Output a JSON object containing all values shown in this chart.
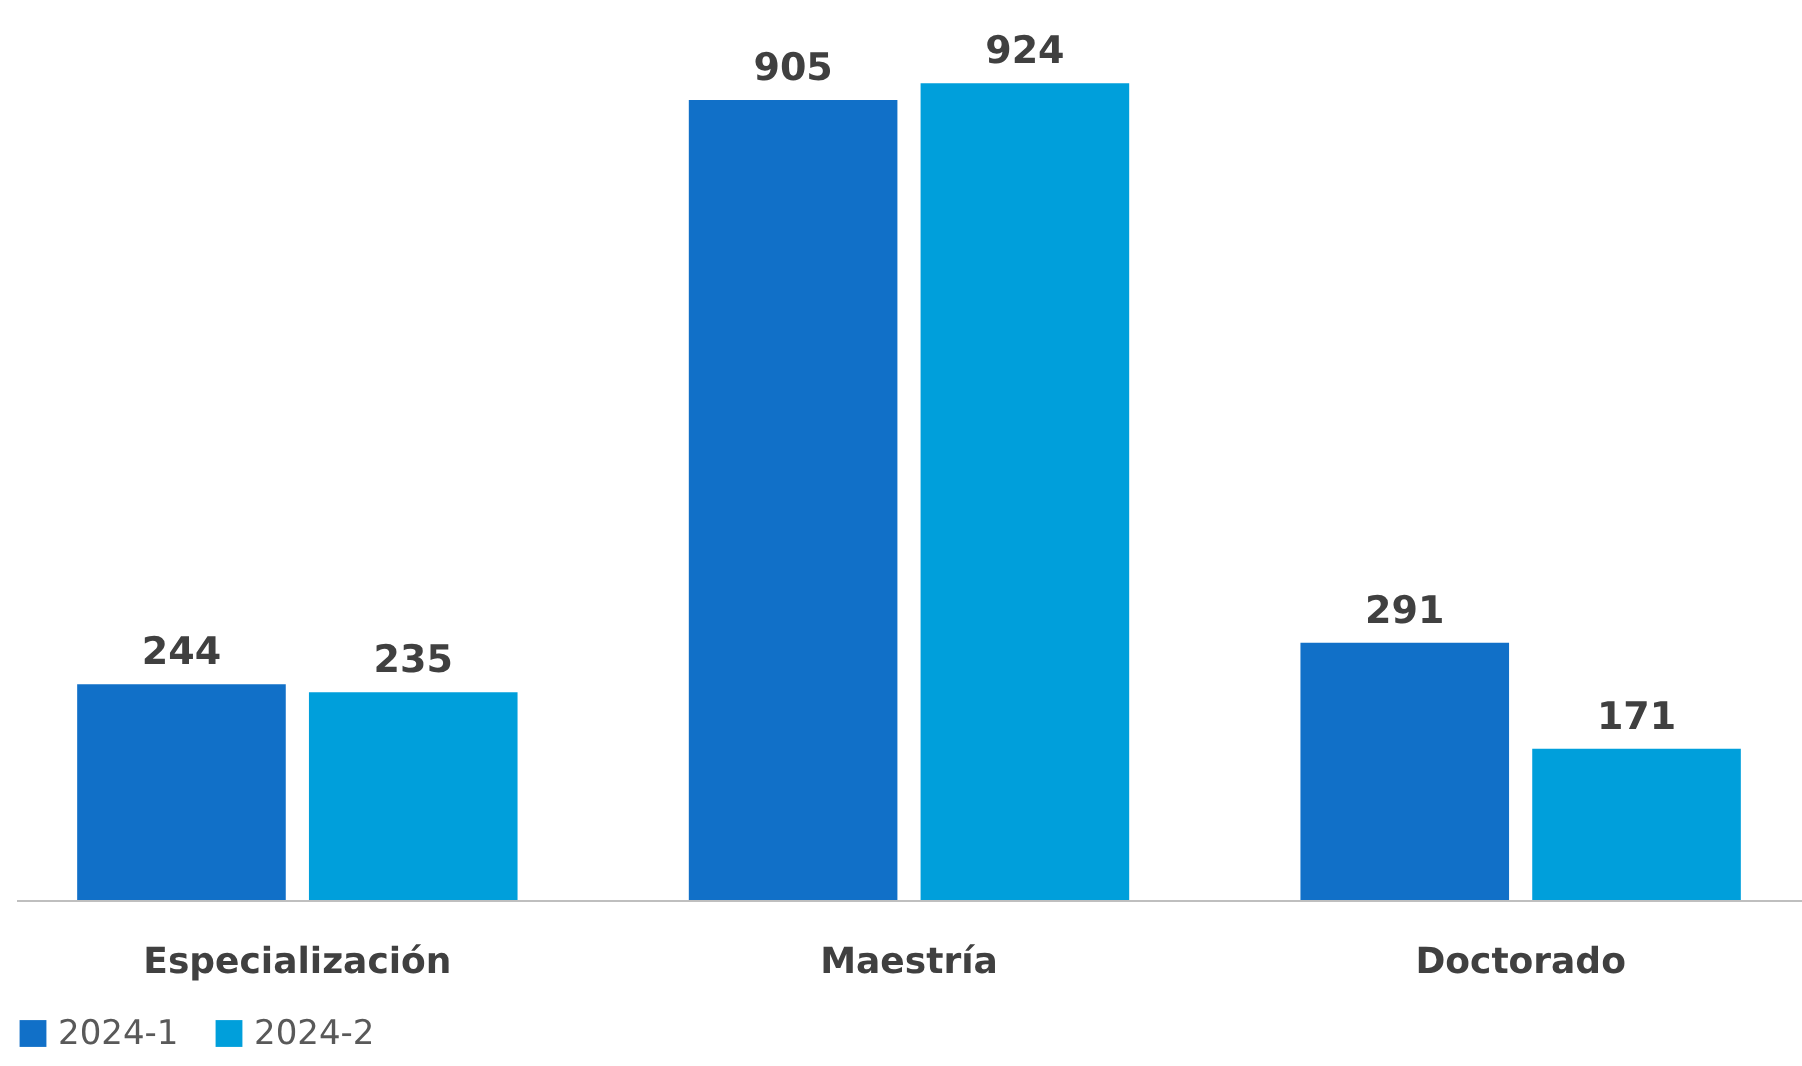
{
  "chart_data": {
    "type": "bar",
    "categories": [
      "Especialización",
      "Maestría",
      "Doctorado"
    ],
    "series": [
      {
        "name": "2024-1",
        "color": "#1170c8",
        "values": [
          244,
          905,
          291
        ]
      },
      {
        "name": "2024-2",
        "color": "#009fdb",
        "values": [
          235,
          924,
          171
        ]
      }
    ],
    "data_labels": true,
    "legend": "bottom"
  }
}
